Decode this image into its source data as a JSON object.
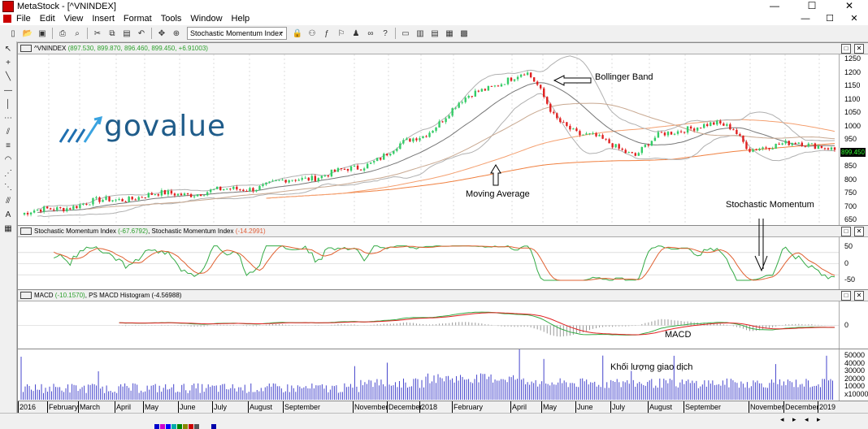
{
  "window": {
    "title": "MetaStock - [^VNINDEX]",
    "min": "—",
    "max": "☐",
    "close": "✕"
  },
  "menu": [
    "File",
    "Edit",
    "View",
    "Insert",
    "Format",
    "Tools",
    "Window",
    "Help"
  ],
  "toolbar": {
    "indicator_combo": "Stochastic Momentum Index"
  },
  "price_pane": {
    "symbol": "^VNINDEX",
    "values": "(897.530, 899.870, 896.460, 899.450, +6.91003)",
    "last_price": "899.450",
    "ticks": [
      "1250",
      "1200",
      "1150",
      "1100",
      "1050",
      "1000",
      "950",
      "900",
      "850",
      "800",
      "750",
      "700",
      "650"
    ],
    "annotations": {
      "bollinger": "Bollinger Band",
      "moving_average": "Moving Average",
      "stochastic": "Stochastic Momentum"
    },
    "logo_text": "govalue"
  },
  "smi_pane": {
    "name1": "Stochastic Momentum Index",
    "val1": "(-67.6792)",
    "name2": "Stochastic Momentum Index",
    "val2": "(-14.2991)",
    "ticks": [
      "50",
      "0",
      "-50"
    ]
  },
  "macd_pane": {
    "name1": "MACD",
    "val1": "(-10.1570)",
    "name2": "PS MACD Histogram",
    "val2": "(-4.56988",
    "ticks": [
      "0"
    ],
    "annotation": "MACD"
  },
  "volume_pane": {
    "ticks": [
      "50000",
      "40000",
      "30000",
      "20000",
      "10000",
      "x10000"
    ],
    "annotation": "Khối lượng giao dịch"
  },
  "x_axis": [
    "2016",
    "February",
    "March",
    "April",
    "May",
    "June",
    "July",
    "August",
    "September",
    "November",
    "December",
    "2018",
    "February",
    "April",
    "May",
    "June",
    "July",
    "August",
    "September",
    "November",
    "December",
    "2019"
  ],
  "colors": {
    "up": "#33cc66",
    "down": "#e02020",
    "bb": "#b0b0b0",
    "ma": "#f08040",
    "smi_k": "#33aa44",
    "smi_d": "#e06030",
    "volume": "#4444cc"
  }
}
